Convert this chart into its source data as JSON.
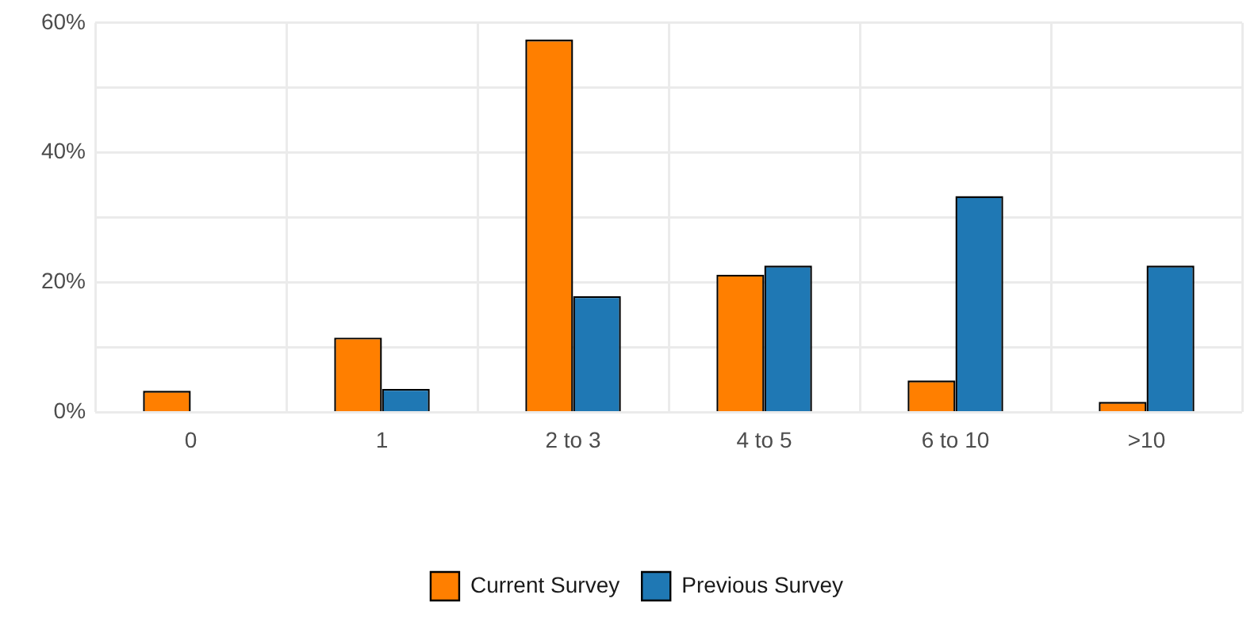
{
  "chart_data": {
    "type": "bar",
    "categories": [
      "0",
      "1",
      "2 to 3",
      "4 to 5",
      "6 to 10",
      ">10"
    ],
    "series": [
      {
        "name": "Current Survey",
        "color": "#ff7f00",
        "values": [
          3.3,
          11.5,
          57.4,
          21.2,
          4.9,
          1.6
        ]
      },
      {
        "name": "Previous Survey",
        "color": "#1f78b4",
        "values": [
          0,
          3.6,
          17.9,
          22.6,
          33.3,
          22.6
        ]
      }
    ],
    "ylim": [
      0,
      60
    ],
    "yticks": [
      {
        "value": 0,
        "label": "0%"
      },
      {
        "value": 10,
        "label": null
      },
      {
        "value": 20,
        "label": "20%"
      },
      {
        "value": 30,
        "label": null
      },
      {
        "value": 40,
        "label": "40%"
      },
      {
        "value": 50,
        "label": null
      },
      {
        "value": 60,
        "label": "60%"
      }
    ],
    "grid": true,
    "legend": "bottom"
  }
}
